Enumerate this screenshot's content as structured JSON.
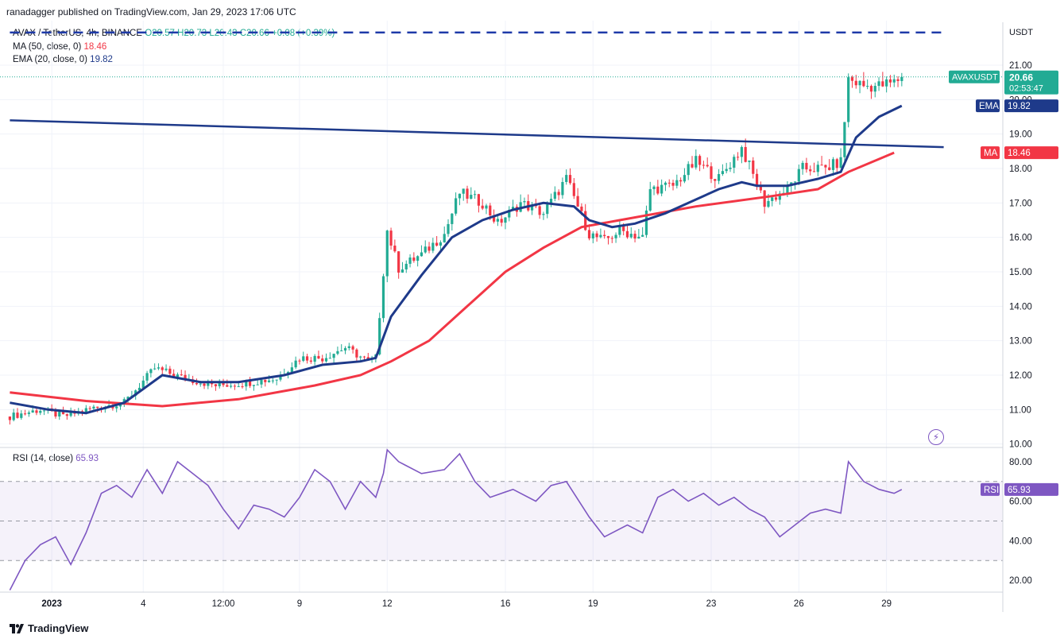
{
  "publisher": "ranadagger published on TradingView.com, Jan 29, 2023 17:06 UTC",
  "legend": {
    "symbol": "AVAX / TetherUS, 4h, BINANCE",
    "ohlc": "O20.57 H20.73 L20.43 C20.66 +0.08 (+0.39%)",
    "ma_label": "MA (50, close, 0)",
    "ma_value": "18.46",
    "ema_label": "EMA (20, close, 0)",
    "ema_value": "19.82",
    "rsi_label": "RSI (14, close)",
    "rsi_value": "65.93"
  },
  "axis": {
    "currency": "USDT"
  },
  "badges": {
    "symbol_label": "AVAXUSDT",
    "price": "20.66",
    "countdown": "02:53:47",
    "ema_label": "EMA",
    "ema_value": "19.82",
    "ma_label": "MA",
    "ma_value": "18.46",
    "rsi_label": "RSI",
    "rsi_value": "65.93"
  },
  "footer": {
    "brand": "TradingView"
  },
  "colors": {
    "up": "#22ab94",
    "down": "#f23645",
    "ema": "#1e3a8a",
    "ma": "#f23645",
    "trendline": "#1e3a8a",
    "rsi": "#7e57c2",
    "resistance": "#1e3aa8"
  },
  "chart_data": [
    {
      "type": "candlestick",
      "title": "AVAX / TetherUS, 4h, BINANCE",
      "ylabel": "USDT",
      "ylim": [
        9.9,
        22.2
      ],
      "y_ticks": [
        10,
        11,
        12,
        13,
        14,
        15,
        16,
        17,
        18,
        19,
        20,
        21
      ],
      "y_tick_labels": [
        "10.00",
        "11.00",
        "12.00",
        "13.00",
        "14.00",
        "15.00",
        "16.00",
        "17.00",
        "18.00",
        "19.00",
        "20.00",
        "21.00"
      ],
      "x_ticks": [
        {
          "label": "2023",
          "bar": 11
        },
        {
          "label": "4",
          "bar": 35
        },
        {
          "label": "12:00",
          "bar": 56
        },
        {
          "label": "9",
          "bar": 76
        },
        {
          "label": "12",
          "bar": 99
        },
        {
          "label": "16",
          "bar": 130
        },
        {
          "label": "19",
          "bar": 153
        },
        {
          "label": "23",
          "bar": 184
        },
        {
          "label": "26",
          "bar": 207
        },
        {
          "label": "29",
          "bar": 230
        }
      ],
      "price_path": [
        [
          0,
          10.8
        ],
        [
          8,
          11.0
        ],
        [
          14,
          10.8
        ],
        [
          22,
          11.05
        ],
        [
          30,
          11.2
        ],
        [
          38,
          12.2
        ],
        [
          46,
          11.9
        ],
        [
          54,
          11.7
        ],
        [
          60,
          11.75
        ],
        [
          70,
          11.9
        ],
        [
          76,
          12.5
        ],
        [
          82,
          12.5
        ],
        [
          88,
          12.8
        ],
        [
          94,
          12.4
        ],
        [
          96,
          12.5
        ],
        [
          98,
          15.0
        ],
        [
          99,
          16.2
        ],
        [
          102,
          15.1
        ],
        [
          108,
          15.5
        ],
        [
          114,
          16.1
        ],
        [
          118,
          17.3
        ],
        [
          124,
          17.0
        ],
        [
          128,
          16.4
        ],
        [
          134,
          17.0
        ],
        [
          140,
          16.7
        ],
        [
          146,
          17.7
        ],
        [
          152,
          16.1
        ],
        [
          156,
          15.9
        ],
        [
          160,
          16.2
        ],
        [
          166,
          16.0
        ],
        [
          168,
          17.4
        ],
        [
          174,
          17.5
        ],
        [
          180,
          18.2
        ],
        [
          186,
          17.7
        ],
        [
          192,
          18.6
        ],
        [
          198,
          17.0
        ],
        [
          204,
          17.4
        ],
        [
          208,
          18.0
        ],
        [
          214,
          18.0
        ],
        [
          218,
          18.2
        ],
        [
          220,
          20.6
        ],
        [
          224,
          20.4
        ],
        [
          228,
          20.4
        ],
        [
          232,
          20.5
        ],
        [
          234,
          20.66
        ]
      ],
      "series": [
        {
          "name": "MA (50, close, 0)",
          "last": 18.46,
          "values": [
            [
              0,
              11.5
            ],
            [
              20,
              11.25
            ],
            [
              40,
              11.1
            ],
            [
              60,
              11.3
            ],
            [
              80,
              11.7
            ],
            [
              92,
              12.0
            ],
            [
              100,
              12.4
            ],
            [
              110,
              13.0
            ],
            [
              120,
              14.0
            ],
            [
              130,
              15.0
            ],
            [
              140,
              15.7
            ],
            [
              150,
              16.3
            ],
            [
              160,
              16.5
            ],
            [
              180,
              16.9
            ],
            [
              200,
              17.2
            ],
            [
              212,
              17.4
            ],
            [
              220,
              17.9
            ],
            [
              232,
              18.46
            ]
          ]
        },
        {
          "name": "EMA (20, close, 0)",
          "last": 19.82,
          "values": [
            [
              0,
              11.2
            ],
            [
              10,
              11.0
            ],
            [
              20,
              10.9
            ],
            [
              30,
              11.2
            ],
            [
              40,
              12.0
            ],
            [
              50,
              11.8
            ],
            [
              60,
              11.8
            ],
            [
              72,
              12.0
            ],
            [
              82,
              12.3
            ],
            [
              92,
              12.4
            ],
            [
              96,
              12.5
            ],
            [
              100,
              13.7
            ],
            [
              108,
              14.9
            ],
            [
              116,
              16.0
            ],
            [
              124,
              16.5
            ],
            [
              132,
              16.8
            ],
            [
              140,
              17.0
            ],
            [
              148,
              16.9
            ],
            [
              152,
              16.5
            ],
            [
              158,
              16.3
            ],
            [
              164,
              16.4
            ],
            [
              172,
              16.7
            ],
            [
              180,
              17.1
            ],
            [
              186,
              17.4
            ],
            [
              192,
              17.6
            ],
            [
              196,
              17.5
            ],
            [
              204,
              17.5
            ],
            [
              212,
              17.7
            ],
            [
              218,
              17.9
            ],
            [
              222,
              18.9
            ],
            [
              228,
              19.5
            ],
            [
              234,
              19.82
            ]
          ]
        },
        {
          "name": "Trendline",
          "values": [
            [
              0,
              19.4
            ],
            [
              245,
              18.62
            ]
          ]
        },
        {
          "name": "Resistance",
          "style": "dashed",
          "values": [
            [
              0,
              21.95
            ],
            [
              245,
              21.95
            ]
          ]
        }
      ],
      "last_price": 20.66
    },
    {
      "type": "line",
      "title": "RSI (14, close)",
      "ylim": [
        14,
        86
      ],
      "y_ticks": [
        20,
        40,
        60,
        80
      ],
      "y_tick_labels": [
        "20.00",
        "40.00",
        "60.00",
        "80.00"
      ],
      "band": [
        30,
        70
      ],
      "midline": 50,
      "last": 65.93,
      "values": [
        [
          0,
          15
        ],
        [
          4,
          30
        ],
        [
          8,
          38
        ],
        [
          12,
          42
        ],
        [
          16,
          28
        ],
        [
          20,
          44
        ],
        [
          24,
          64
        ],
        [
          28,
          68
        ],
        [
          32,
          62
        ],
        [
          36,
          76
        ],
        [
          40,
          64
        ],
        [
          44,
          80
        ],
        [
          48,
          74
        ],
        [
          52,
          68
        ],
        [
          56,
          56
        ],
        [
          60,
          46
        ],
        [
          64,
          58
        ],
        [
          68,
          56
        ],
        [
          72,
          52
        ],
        [
          76,
          62
        ],
        [
          80,
          76
        ],
        [
          84,
          70
        ],
        [
          88,
          56
        ],
        [
          92,
          70
        ],
        [
          96,
          62
        ],
        [
          98,
          74
        ],
        [
          99,
          86
        ],
        [
          102,
          80
        ],
        [
          108,
          74
        ],
        [
          114,
          76
        ],
        [
          118,
          84
        ],
        [
          122,
          70
        ],
        [
          126,
          62
        ],
        [
          132,
          66
        ],
        [
          138,
          60
        ],
        [
          142,
          68
        ],
        [
          146,
          70
        ],
        [
          152,
          52
        ],
        [
          156,
          42
        ],
        [
          162,
          48
        ],
        [
          166,
          44
        ],
        [
          170,
          62
        ],
        [
          174,
          66
        ],
        [
          178,
          60
        ],
        [
          182,
          64
        ],
        [
          186,
          58
        ],
        [
          190,
          62
        ],
        [
          194,
          56
        ],
        [
          198,
          52
        ],
        [
          202,
          42
        ],
        [
          206,
          48
        ],
        [
          210,
          54
        ],
        [
          214,
          56
        ],
        [
          218,
          54
        ],
        [
          220,
          80
        ],
        [
          224,
          70
        ],
        [
          228,
          66
        ],
        [
          232,
          64
        ],
        [
          234,
          65.93
        ]
      ]
    }
  ]
}
